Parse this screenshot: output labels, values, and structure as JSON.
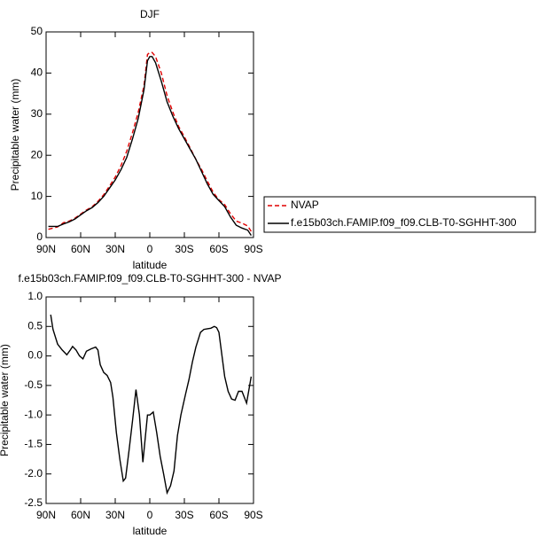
{
  "chart_data": [
    {
      "type": "line",
      "title": "DJF",
      "xlabel": "latitude",
      "ylabel": "Precipitable water (mm)",
      "x": [
        88,
        84,
        80,
        75,
        70,
        65,
        60,
        55,
        50,
        45,
        40,
        35,
        30,
        25,
        20,
        15,
        10,
        5,
        2,
        0,
        -2,
        -5,
        -10,
        -15,
        -20,
        -25,
        -30,
        -35,
        -40,
        -45,
        -50,
        -55,
        -60,
        -65,
        -70,
        -75,
        -80,
        -85,
        -88
      ],
      "xlim": [
        90,
        -90
      ],
      "xticks": [
        {
          "value": 90,
          "label": "90N"
        },
        {
          "value": 60,
          "label": "60N"
        },
        {
          "value": 30,
          "label": "30N"
        },
        0,
        {
          "value": -30,
          "label": "30S"
        },
        {
          "value": -60,
          "label": "60S"
        },
        {
          "value": -90,
          "label": "90S"
        }
      ],
      "ylim": [
        0,
        50
      ],
      "yticks": [
        0,
        10,
        20,
        30,
        40,
        50
      ],
      "legend": "right",
      "series": [
        {
          "name": "NVAP",
          "color": "#e00000",
          "dashed": true,
          "values": [
            2.0,
            2.3,
            2.6,
            3.6,
            4.0,
            4.7,
            5.7,
            6.7,
            7.5,
            8.8,
            10.4,
            12.5,
            14.7,
            17.5,
            21,
            25.5,
            30.5,
            37,
            44.5,
            45,
            45,
            44,
            40,
            34.5,
            30.5,
            27,
            24.5,
            21.8,
            19,
            16.5,
            13.7,
            11,
            9.2,
            8,
            5.8,
            4,
            3.5,
            2.8,
            1.5
          ]
        },
        {
          "name": "f.e15b03ch.FAMIP.f09_f09.CLB-T0-SGHHT-300",
          "color": "#000000",
          "dashed": false,
          "values": [
            2.7,
            2.7,
            2.7,
            3.3,
            3.8,
            4.5,
            5.5,
            6.5,
            7.3,
            8.5,
            10,
            12,
            14,
            16.5,
            19.5,
            24,
            29,
            36,
            43,
            44,
            44,
            42.5,
            38,
            33,
            29.5,
            26.5,
            24,
            21.5,
            19,
            16,
            13,
            10.5,
            9,
            7.5,
            5,
            3,
            2.3,
            1.8,
            0.5
          ]
        }
      ]
    },
    {
      "type": "line",
      "title": "f.e15b03ch.FAMIP.f09_f09.CLB-T0-SGHHT-300 - NVAP",
      "xlabel": "latitude",
      "ylabel": "Precipitable water (mm)",
      "x": [
        86,
        84,
        80,
        76,
        72,
        69,
        67,
        64,
        61,
        58,
        55,
        51,
        47,
        45,
        43,
        40,
        37,
        34,
        32,
        29,
        26,
        23,
        21,
        18,
        15,
        12,
        9,
        6,
        4,
        2,
        0,
        -3,
        -6,
        -9,
        -12,
        -15,
        -18,
        -21,
        -24,
        -27,
        -31,
        -34,
        -37,
        -40,
        -44,
        -47,
        -50,
        -53,
        -56,
        -58,
        -60,
        -62,
        -65,
        -68,
        -71,
        -74,
        -77,
        -80,
        -84,
        -88
      ],
      "xlim": [
        90,
        -90
      ],
      "xticks": [
        {
          "value": 90,
          "label": "90N"
        },
        {
          "value": 60,
          "label": "60N"
        },
        {
          "value": 30,
          "label": "30N"
        },
        0,
        {
          "value": -30,
          "label": "30S"
        },
        {
          "value": -60,
          "label": "60S"
        },
        {
          "value": -90,
          "label": "90S"
        }
      ],
      "ylim": [
        -2.5,
        1.0
      ],
      "yticks": [
        -2.5,
        {
          "value": -2,
          "label": "-2.0"
        },
        -1.5,
        {
          "value": -1,
          "label": "-1.0"
        },
        -0.5,
        {
          "value": 0,
          "label": "0.0"
        },
        0.5,
        {
          "value": 1,
          "label": "1.0"
        }
      ],
      "series": [
        {
          "color": "#000000",
          "dashed": false,
          "values": [
            0.7,
            0.45,
            0.2,
            0.1,
            0.02,
            0.1,
            0.16,
            0.1,
            0.0,
            -0.05,
            0.08,
            0.12,
            0.15,
            0.1,
            -0.15,
            -0.28,
            -0.33,
            -0.45,
            -0.7,
            -1.3,
            -1.75,
            -2.12,
            -2.07,
            -1.6,
            -1.1,
            -0.57,
            -1.0,
            -1.8,
            -1.4,
            -1.0,
            -1.0,
            -0.95,
            -1.3,
            -1.7,
            -2.0,
            -2.32,
            -2.2,
            -1.95,
            -1.35,
            -1.0,
            -0.65,
            -0.4,
            -0.1,
            0.15,
            0.4,
            0.45,
            0.46,
            0.47,
            0.5,
            0.48,
            0.4,
            0.1,
            -0.35,
            -0.6,
            -0.73,
            -0.75,
            -0.6,
            -0.6,
            -0.8,
            -0.35
          ]
        }
      ]
    }
  ]
}
